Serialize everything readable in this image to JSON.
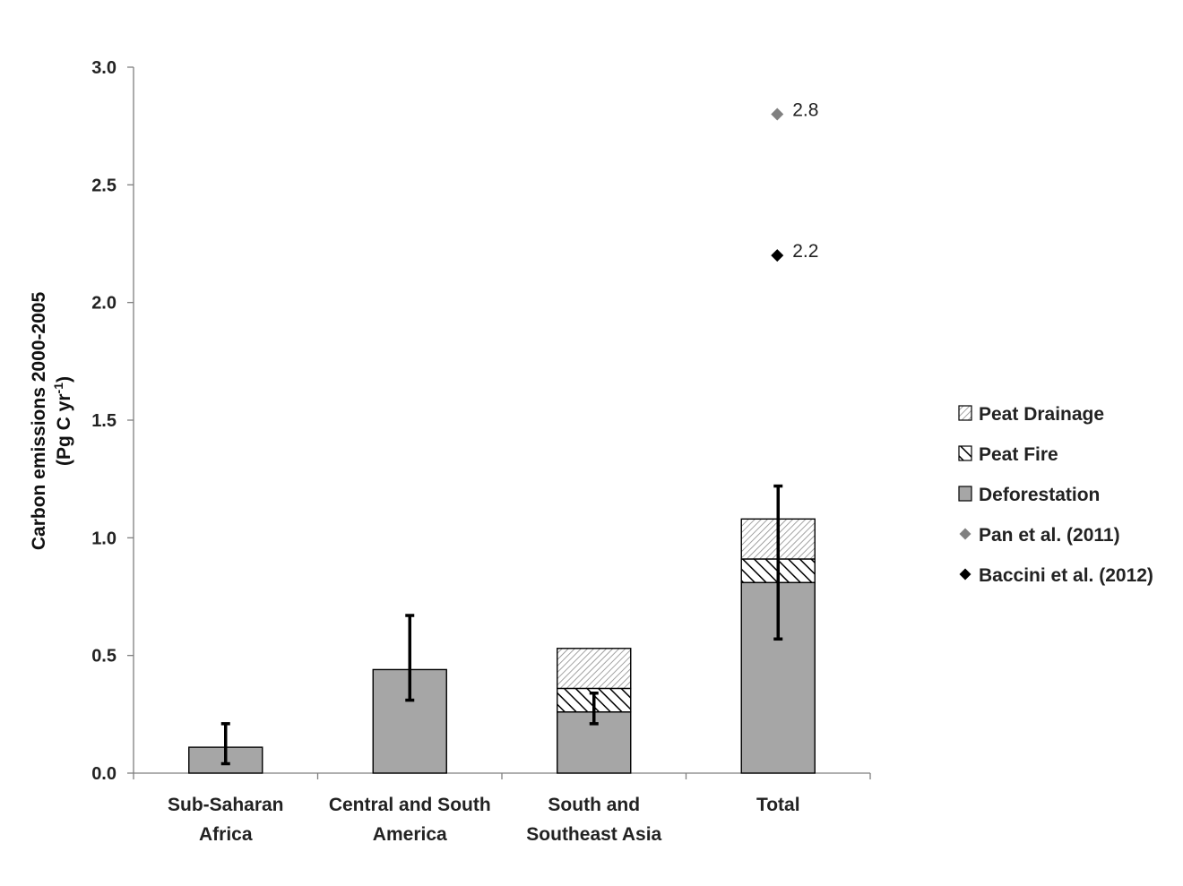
{
  "chart_data": {
    "type": "bar",
    "stacked": true,
    "ylabel": "Carbon emissions 2000-2005",
    "ylabel_units": {
      "open": "(Pg C yr",
      "sup": "-1",
      "close": ")"
    },
    "ylim": [
      0,
      3.0
    ],
    "yticks": [
      "0.0",
      "0.5",
      "1.0",
      "1.5",
      "2.0",
      "2.5",
      "3.0"
    ],
    "ytick_values": [
      0,
      0.5,
      1.0,
      1.5,
      2.0,
      2.5,
      3.0
    ],
    "categories": [
      [
        "Sub-Saharan",
        "Africa"
      ],
      [
        "Central and South",
        "America"
      ],
      [
        "South and",
        "Southeast Asia"
      ],
      [
        "Total"
      ]
    ],
    "series": [
      {
        "name": "Deforestation",
        "values": [
          0.11,
          0.44,
          0.26,
          0.81
        ],
        "color": "#a6a6a6",
        "pattern": "solid"
      },
      {
        "name": "Peat Fire",
        "values": [
          0,
          0,
          0.1,
          0.1
        ],
        "color": "#000000",
        "pattern": "wide-diagonal"
      },
      {
        "name": "Peat Drainage",
        "values": [
          0,
          0,
          0.17,
          0.17
        ],
        "color": "#8c8c8c",
        "pattern": "light-diagonal"
      }
    ],
    "error_bars": [
      {
        "category": 0,
        "low": 0.04,
        "high": 0.21
      },
      {
        "category": 1,
        "low": 0.31,
        "high": 0.67
      },
      {
        "category": 2,
        "low": 0.21,
        "high": 0.34
      },
      {
        "category": 3,
        "low": 0.57,
        "high": 1.22
      }
    ],
    "reference_points": [
      {
        "name": "Pan et al. (2011)",
        "category": 3,
        "value": 2.8,
        "label": "2.8",
        "color": "#808080"
      },
      {
        "name": "Baccini et al. (2012)",
        "category": 3,
        "value": 2.2,
        "label": "2.2",
        "color": "#000000"
      }
    ],
    "legend": [
      {
        "name": "Peat Drainage",
        "kind": "light-diagonal"
      },
      {
        "name": "Peat Fire",
        "kind": "wide-diagonal"
      },
      {
        "name": "Deforestation",
        "kind": "solid"
      },
      {
        "name": "Pan et al. (2011)",
        "kind": "diamond",
        "color": "#808080"
      },
      {
        "name": "Baccini et al. (2012)",
        "kind": "diamond",
        "color": "#000000"
      }
    ],
    "legend_position": "right"
  }
}
